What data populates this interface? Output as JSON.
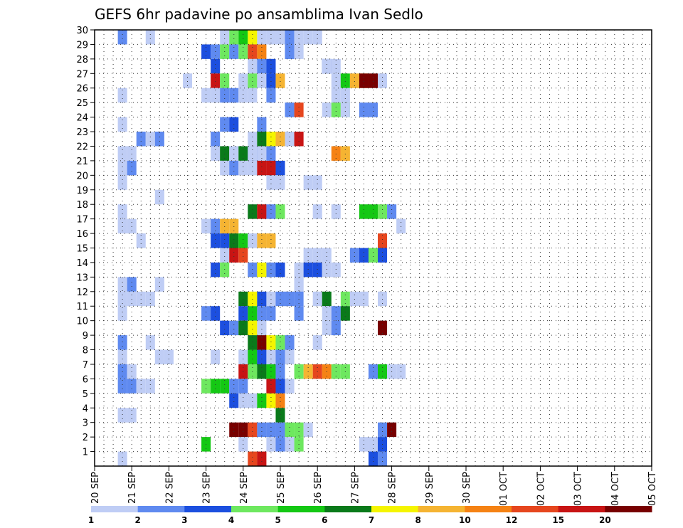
{
  "chart_data": {
    "type": "heatmap",
    "title": "GEFS 6hr padavine po ansamblima Ivan Sedlo",
    "xlabel": "",
    "ylabel": "",
    "x_ticks": [
      "20 SEP",
      "21 SEP",
      "22 SEP",
      "23 SEP",
      "24 SEP",
      "25 SEP",
      "26 SEP",
      "27 SEP",
      "28 SEP",
      "29 SEP",
      "30 SEP",
      "01 OCT",
      "02 OCT",
      "03 OCT",
      "04 OCT",
      "05 OCT"
    ],
    "y_ticks": [
      1,
      2,
      3,
      4,
      5,
      6,
      7,
      8,
      9,
      10,
      11,
      12,
      13,
      14,
      15,
      16,
      17,
      18,
      19,
      20,
      21,
      22,
      23,
      24,
      25,
      26,
      27,
      28,
      29,
      30
    ],
    "x_range_days": [
      0,
      15
    ],
    "y_range": [
      0,
      30
    ],
    "time_step_hours": 6,
    "grid": "dotted",
    "color_levels": [
      1,
      2,
      3,
      4,
      5,
      6,
      7,
      8,
      10,
      12,
      15,
      20
    ],
    "color_labels": [
      "1",
      "2",
      "3",
      "4",
      "5",
      "6",
      "7",
      "8",
      "10",
      "12",
      "15",
      "20"
    ],
    "color_scale": [
      "#bfcdf5",
      "#5f8af0",
      "#1c4fdf",
      "#6ee85f",
      "#14c814",
      "#0a7a1a",
      "#f5f500",
      "#f5b432",
      "#f58214",
      "#e6461e",
      "#c81414",
      "#780000"
    ],
    "cells": [
      [
        30,
        [
          [
            3,
            2
          ],
          [
            6,
            1
          ],
          [
            14,
            1
          ],
          [
            15,
            4
          ],
          [
            16,
            5
          ],
          [
            17,
            7
          ],
          [
            18,
            1
          ],
          [
            19,
            1
          ],
          [
            20,
            1
          ],
          [
            21,
            2
          ],
          [
            22,
            1
          ],
          [
            23,
            1
          ],
          [
            24,
            1
          ]
        ]
      ],
      [
        29,
        [
          [
            12,
            3
          ],
          [
            13,
            2
          ],
          [
            14,
            4
          ],
          [
            15,
            2
          ],
          [
            16,
            4
          ],
          [
            17,
            10
          ],
          [
            18,
            9
          ],
          [
            21,
            2
          ],
          [
            21,
            2
          ],
          [
            22,
            1
          ]
        ]
      ],
      [
        28,
        [
          [
            13,
            3
          ],
          [
            17,
            1
          ],
          [
            18,
            2
          ],
          [
            19,
            2
          ],
          [
            19,
            3
          ],
          [
            25,
            3
          ],
          [
            25,
            1
          ],
          [
            26,
            1
          ]
        ]
      ],
      [
        27,
        [
          [
            10,
            1
          ],
          [
            13,
            11
          ],
          [
            14,
            4
          ],
          [
            16,
            1
          ],
          [
            17,
            4
          ],
          [
            18,
            1
          ],
          [
            19,
            3
          ],
          [
            20,
            8
          ],
          [
            26,
            1
          ],
          [
            27,
            5
          ],
          [
            28,
            8
          ],
          [
            29,
            8
          ],
          [
            29,
            12
          ],
          [
            30,
            12
          ],
          [
            31,
            1
          ]
        ]
      ],
      [
        26,
        [
          [
            3,
            1
          ],
          [
            12,
            1
          ],
          [
            13,
            1
          ],
          [
            14,
            2
          ],
          [
            15,
            2
          ],
          [
            16,
            1
          ],
          [
            17,
            1
          ],
          [
            19,
            2
          ],
          [
            26,
            1
          ],
          [
            27,
            1
          ]
        ]
      ],
      [
        25,
        [
          [
            21,
            2
          ],
          [
            22,
            10
          ],
          [
            25,
            1
          ],
          [
            26,
            4
          ],
          [
            27,
            4
          ],
          [
            27,
            1
          ],
          [
            29,
            2
          ],
          [
            30,
            2
          ]
        ]
      ],
      [
        24,
        [
          [
            3,
            1
          ],
          [
            14,
            2
          ],
          [
            15,
            3
          ],
          [
            18,
            2
          ]
        ]
      ],
      [
        23,
        [
          [
            5,
            2
          ],
          [
            6,
            1
          ],
          [
            7,
            2
          ],
          [
            13,
            2
          ],
          [
            17,
            1
          ],
          [
            18,
            6
          ],
          [
            19,
            7
          ],
          [
            20,
            8
          ],
          [
            21,
            1
          ],
          [
            22,
            11
          ]
        ]
      ],
      [
        22,
        [
          [
            3,
            1
          ],
          [
            4,
            1
          ],
          [
            13,
            1
          ],
          [
            14,
            6
          ],
          [
            15,
            1
          ],
          [
            16,
            6
          ],
          [
            17,
            3
          ],
          [
            17,
            1
          ],
          [
            18,
            1
          ],
          [
            19,
            2
          ],
          [
            26,
            9
          ],
          [
            27,
            8
          ]
        ]
      ],
      [
        21,
        [
          [
            3,
            1
          ],
          [
            4,
            2
          ],
          [
            14,
            1
          ],
          [
            15,
            2
          ],
          [
            16,
            1
          ],
          [
            17,
            1
          ],
          [
            18,
            11
          ],
          [
            19,
            11
          ],
          [
            20,
            3
          ]
        ]
      ],
      [
        20,
        [
          [
            3,
            1
          ],
          [
            19,
            1
          ],
          [
            20,
            1
          ],
          [
            23,
            1
          ],
          [
            24,
            1
          ]
        ]
      ],
      [
        19,
        [
          [
            7,
            1
          ]
        ]
      ],
      [
        18,
        [
          [
            3,
            1
          ],
          [
            17,
            6
          ],
          [
            18,
            11
          ],
          [
            19,
            2
          ],
          [
            20,
            4
          ],
          [
            24,
            1
          ],
          [
            26,
            1
          ],
          [
            29,
            5
          ],
          [
            30,
            5
          ],
          [
            31,
            4
          ],
          [
            32,
            2
          ]
        ]
      ],
      [
        17,
        [
          [
            3,
            1
          ],
          [
            4,
            1
          ],
          [
            12,
            1
          ],
          [
            13,
            2
          ],
          [
            14,
            8
          ],
          [
            15,
            8
          ],
          [
            33,
            1
          ]
        ]
      ],
      [
        16,
        [
          [
            5,
            1
          ],
          [
            13,
            3
          ],
          [
            14,
            3
          ],
          [
            15,
            6
          ],
          [
            16,
            5
          ],
          [
            17,
            1
          ],
          [
            18,
            8
          ],
          [
            19,
            8
          ],
          [
            31,
            10
          ]
        ]
      ],
      [
        15,
        [
          [
            14,
            1
          ],
          [
            15,
            11
          ],
          [
            16,
            10
          ],
          [
            23,
            1
          ],
          [
            24,
            1
          ],
          [
            25,
            1
          ],
          [
            28,
            2
          ],
          [
            29,
            3
          ],
          [
            30,
            4
          ],
          [
            31,
            3
          ]
        ]
      ],
      [
        14,
        [
          [
            13,
            3
          ],
          [
            14,
            4
          ],
          [
            17,
            2
          ],
          [
            18,
            7
          ],
          [
            19,
            2
          ],
          [
            20,
            3
          ],
          [
            22,
            1
          ],
          [
            23,
            3
          ],
          [
            24,
            3
          ],
          [
            25,
            1
          ],
          [
            26,
            1
          ]
        ]
      ],
      [
        13,
        [
          [
            3,
            1
          ],
          [
            4,
            2
          ],
          [
            7,
            1
          ],
          [
            22,
            1
          ],
          [
            22,
            1
          ]
        ]
      ],
      [
        12,
        [
          [
            3,
            1
          ],
          [
            4,
            1
          ],
          [
            5,
            1
          ],
          [
            6,
            1
          ],
          [
            16,
            6
          ],
          [
            17,
            7
          ],
          [
            18,
            3
          ],
          [
            19,
            1
          ],
          [
            20,
            2
          ],
          [
            21,
            2
          ],
          [
            22,
            2
          ],
          [
            24,
            1
          ],
          [
            25,
            6
          ],
          [
            27,
            4
          ],
          [
            28,
            1
          ],
          [
            29,
            1
          ],
          [
            31,
            1
          ]
        ]
      ],
      [
        11,
        [
          [
            3,
            1
          ],
          [
            12,
            2
          ],
          [
            13,
            3
          ],
          [
            16,
            3
          ],
          [
            17,
            5
          ],
          [
            18,
            2
          ],
          [
            19,
            2
          ],
          [
            22,
            2
          ],
          [
            25,
            1
          ],
          [
            26,
            2
          ],
          [
            27,
            6
          ]
        ]
      ],
      [
        10,
        [
          [
            14,
            3
          ],
          [
            15,
            2
          ],
          [
            16,
            6
          ],
          [
            17,
            7
          ],
          [
            18,
            1
          ],
          [
            25,
            1
          ],
          [
            26,
            2
          ],
          [
            31,
            12
          ]
        ]
      ],
      [
        9,
        [
          [
            3,
            2
          ],
          [
            6,
            1
          ],
          [
            17,
            6
          ],
          [
            18,
            12
          ],
          [
            19,
            7
          ],
          [
            20,
            4
          ],
          [
            21,
            2
          ],
          [
            24,
            1
          ]
        ]
      ],
      [
        8,
        [
          [
            3,
            1
          ],
          [
            7,
            1
          ],
          [
            8,
            1
          ],
          [
            13,
            1
          ],
          [
            16,
            1
          ],
          [
            17,
            5
          ],
          [
            18,
            3
          ],
          [
            19,
            1
          ],
          [
            20,
            2
          ],
          [
            21,
            1
          ]
        ]
      ],
      [
        7,
        [
          [
            3,
            2
          ],
          [
            4,
            1
          ],
          [
            16,
            11
          ],
          [
            17,
            4
          ],
          [
            18,
            6
          ],
          [
            19,
            5
          ],
          [
            20,
            2
          ],
          [
            22,
            4
          ],
          [
            23,
            8
          ],
          [
            24,
            10
          ],
          [
            25,
            9
          ],
          [
            26,
            4
          ],
          [
            27,
            4
          ],
          [
            30,
            2
          ],
          [
            31,
            5
          ],
          [
            32,
            1
          ],
          [
            33,
            1
          ]
        ]
      ],
      [
        6,
        [
          [
            3,
            2
          ],
          [
            4,
            2
          ],
          [
            5,
            1
          ],
          [
            6,
            1
          ],
          [
            12,
            4
          ],
          [
            13,
            5
          ],
          [
            14,
            5
          ],
          [
            15,
            2
          ],
          [
            16,
            2
          ],
          [
            19,
            2
          ],
          [
            19,
            11
          ],
          [
            20,
            3
          ],
          [
            21,
            1
          ]
        ]
      ],
      [
        5,
        [
          [
            15,
            3
          ],
          [
            16,
            1
          ],
          [
            17,
            1
          ],
          [
            18,
            5
          ],
          [
            19,
            7
          ],
          [
            20,
            9
          ]
        ]
      ],
      [
        4,
        [
          [
            3,
            1
          ],
          [
            4,
            1
          ],
          [
            20,
            6
          ]
        ]
      ],
      [
        3,
        [
          [
            15,
            12
          ],
          [
            16,
            12
          ],
          [
            17,
            10
          ],
          [
            18,
            2
          ],
          [
            19,
            2
          ],
          [
            20,
            2
          ],
          [
            21,
            4
          ],
          [
            22,
            4
          ],
          [
            23,
            1
          ],
          [
            31,
            2
          ],
          [
            32,
            12
          ]
        ]
      ],
      [
        2,
        [
          [
            12,
            5
          ],
          [
            16,
            1
          ],
          [
            19,
            1
          ],
          [
            20,
            2
          ],
          [
            21,
            1
          ],
          [
            22,
            4
          ],
          [
            29,
            1
          ],
          [
            30,
            1
          ],
          [
            31,
            3
          ]
        ]
      ],
      [
        1,
        [
          [
            3,
            1
          ],
          [
            17,
            10
          ],
          [
            18,
            11
          ],
          [
            30,
            3
          ],
          [
            31,
            2
          ]
        ]
      ]
    ]
  }
}
